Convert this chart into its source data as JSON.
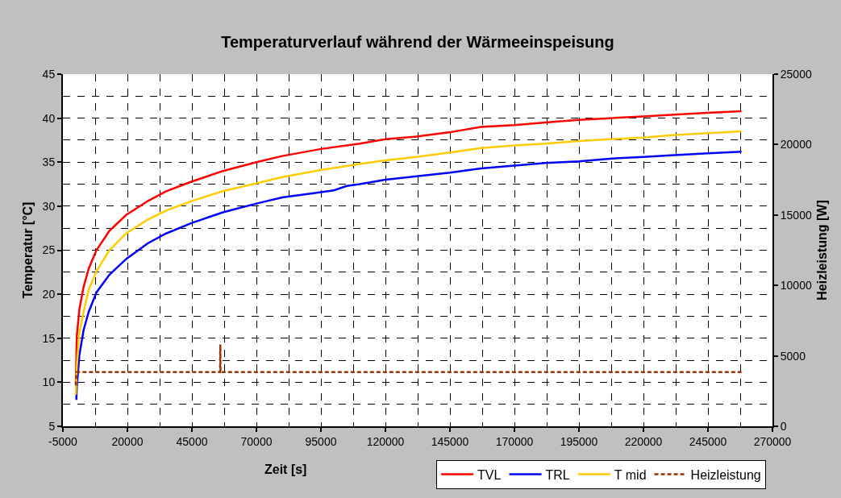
{
  "chart_data": {
    "type": "line",
    "title": "Temperaturverlauf während der Wärmeeinspeisung",
    "xlabel": "Zeit [s]",
    "ylabel": "Temperatur [°C]",
    "y2label": "Heizleistung [W]",
    "xlim": [
      -5000,
      270000
    ],
    "xticks": [
      -5000,
      20000,
      45000,
      70000,
      95000,
      120000,
      145000,
      170000,
      195000,
      220000,
      245000,
      270000
    ],
    "ylim": [
      5,
      45
    ],
    "yticks": [
      5,
      10,
      15,
      20,
      25,
      30,
      35,
      40,
      45
    ],
    "y2lim": [
      0,
      25000
    ],
    "y2ticks": [
      0,
      5000,
      10000,
      15000,
      20000,
      25000
    ],
    "grid": true,
    "legend": "bottom right",
    "marker": "none",
    "line_style": "solid",
    "series": [
      {
        "name": "TVL",
        "color": "#ff0000",
        "x": [
          0,
          400,
          1400,
          3000,
          5000,
          8000,
          13000,
          19500,
          28000,
          35000,
          45000,
          57000,
          70000,
          80000,
          95000,
          110000,
          120000,
          132000,
          145000,
          157000,
          170000,
          182000,
          195000,
          207000,
          220000,
          232000,
          245000,
          258000
        ],
        "values": [
          9.8,
          15.3,
          18.3,
          20.8,
          22.9,
          25.0,
          27.2,
          29.0,
          30.6,
          31.7,
          32.8,
          34.0,
          35.0,
          35.7,
          36.5,
          37.1,
          37.6,
          37.9,
          38.4,
          39.0,
          39.2,
          39.5,
          39.8,
          40.0,
          40.2,
          40.4,
          40.6,
          40.8
        ]
      },
      {
        "name": "TRL",
        "color": "#0000ff",
        "x": [
          200,
          400,
          1400,
          3000,
          5000,
          8000,
          13000,
          19500,
          28000,
          35000,
          45000,
          57000,
          70000,
          80000,
          95000,
          100000,
          105000,
          110000,
          120000,
          132000,
          145000,
          157000,
          170000,
          182000,
          195000,
          207000,
          220000,
          232000,
          245000,
          258000
        ],
        "values": [
          8.0,
          9.5,
          13.1,
          15.9,
          18.0,
          20.2,
          22.2,
          24.0,
          25.8,
          26.9,
          28.1,
          29.3,
          30.3,
          31.0,
          31.6,
          31.8,
          32.3,
          32.5,
          33.0,
          33.4,
          33.8,
          34.3,
          34.6,
          34.9,
          35.1,
          35.4,
          35.6,
          35.8,
          36.0,
          36.2
        ]
      },
      {
        "name": "T mid",
        "color": "#ffcc00",
        "x": [
          0,
          400,
          1400,
          3000,
          5000,
          8000,
          13000,
          19500,
          28000,
          35000,
          45000,
          57000,
          70000,
          80000,
          95000,
          110000,
          120000,
          132000,
          145000,
          157000,
          170000,
          182000,
          195000,
          207000,
          220000,
          232000,
          245000,
          258000
        ],
        "values": [
          8.6,
          11.9,
          15.6,
          18.0,
          20.5,
          22.6,
          25.0,
          26.9,
          28.5,
          29.5,
          30.6,
          31.7,
          32.6,
          33.3,
          34.1,
          34.8,
          35.2,
          35.6,
          36.1,
          36.6,
          36.9,
          37.1,
          37.4,
          37.6,
          37.8,
          38.1,
          38.3,
          38.5
        ]
      },
      {
        "name": "Heizleistung",
        "color": "#993300",
        "axis": "y2",
        "line_style": "dashed",
        "x": [
          0,
          300,
          55900,
          56000,
          56100,
          258000
        ],
        "values": [
          2900,
          3850,
          3850,
          5800,
          3850,
          3850
        ]
      }
    ]
  }
}
